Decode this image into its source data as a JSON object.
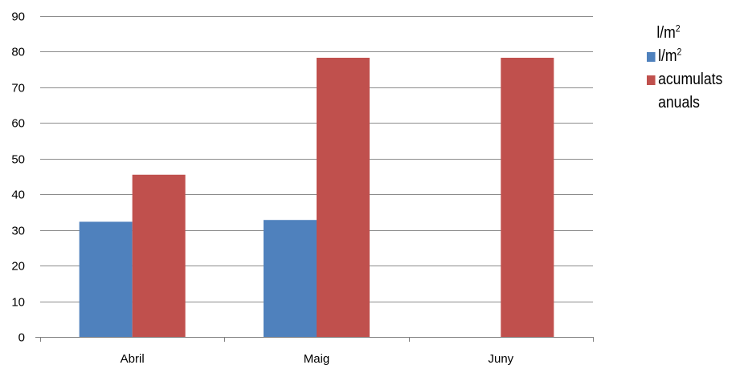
{
  "chart_data": {
    "type": "bar",
    "categories": [
      "Abril",
      "Maig",
      "Juny"
    ],
    "series": [
      {
        "name": "l/m²",
        "color": "#4f81bd",
        "values": [
          32.3,
          32.8,
          0
        ]
      },
      {
        "name": "acumulats anuals",
        "color": "#c0504d",
        "values": [
          45.5,
          78.3,
          78.3
        ]
      }
    ],
    "ylim": [
      0,
      90
    ],
    "yticks": [
      0,
      10,
      20,
      30,
      40,
      50,
      60,
      70,
      80,
      90
    ],
    "grid": true,
    "legend": {
      "position": "right",
      "title_base": "l/m",
      "title_sup": "2",
      "series1_base": "l/m",
      "series1_sup": "2"
    }
  }
}
